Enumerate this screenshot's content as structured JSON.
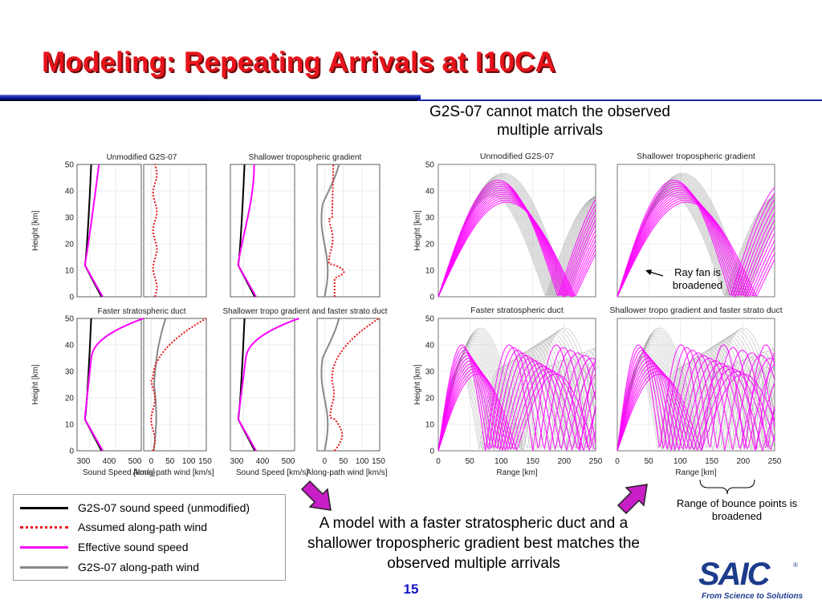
{
  "slide": {
    "title": "Modeling: Repeating Arrivals at I10CA",
    "g2s_note": "G2S-07 cannot match the observed multiple arrivals",
    "ray_fan_note": "Ray fan is broadened",
    "bounce_note": "Range of bounce points is broadened",
    "bottom_note": "A model with a faster stratospheric duct and a shallower tropospheric gradient best matches the observed multiple arrivals",
    "page_number": "15"
  },
  "colors": {
    "title": "#e8141c",
    "accent_blue": "#1313c8",
    "effective": "#ff00ff",
    "wind": "#e8141c",
    "g2s_wind": "#888888",
    "arrow": "#c71ec7",
    "saic": "#1c3c8c"
  },
  "profile_panels": {
    "titles": [
      "Unmodified G2S-07",
      "Shallower tropospheric gradient",
      "Faster stratospheric duct",
      "Shallower tropo gradient and faster strato duct"
    ],
    "ylabel": "Height [km]",
    "sound_xlabel": "Sound Speed [km/s]",
    "wind_xlabel": "Along-path wind [km/s]",
    "height_ticks": [
      "50",
      "40",
      "30",
      "20",
      "10",
      "0"
    ],
    "sound_ticks": [
      "300",
      "400",
      "500"
    ],
    "wind_ticks": [
      "0",
      "50",
      "100",
      "150"
    ]
  },
  "ray_panels": {
    "titles": [
      "Unmodified G2S-07",
      "Shallower tropospheric gradient",
      "Faster stratospheric duct",
      "Shallower tropo gradient and faster strato duct"
    ],
    "ylabel": "Height [km]",
    "xlabel": "Range [km]",
    "height_ticks": [
      "50",
      "40",
      "30",
      "20",
      "10",
      "0"
    ],
    "range_ticks": [
      "0",
      "50",
      "100",
      "150",
      "200",
      "250"
    ]
  },
  "legend": {
    "items": [
      {
        "label": "G2S-07 sound speed (unmodified)",
        "color": "#000000",
        "style": "solid"
      },
      {
        "label": "Assumed along-path wind",
        "color": "#e8141c",
        "style": "dotted"
      },
      {
        "label": "Effective sound speed",
        "color": "#ff00ff",
        "style": "solid"
      },
      {
        "label": "G2S-07 along-path wind",
        "color": "#888888",
        "style": "solid"
      }
    ]
  },
  "logo": {
    "name": "SAIC",
    "tagline": "From Science to Solutions"
  }
}
